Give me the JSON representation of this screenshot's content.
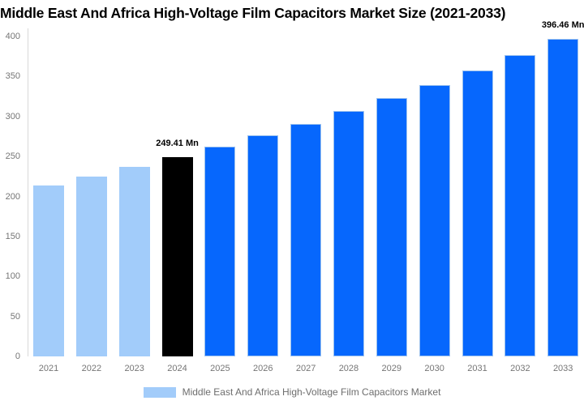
{
  "header": {
    "title": "Middle East And Africa High-Voltage Film Capacitors Market Size (2021-2033)"
  },
  "legend": {
    "label": "Middle East And Africa High-Voltage Film Capacitors Market"
  },
  "colors": {
    "historical_bar": "#A2CCFA",
    "base_year_bar": "#000000",
    "forecast_bar": "#0667FD",
    "forecast_bar_border": "#9EC3EE",
    "axis_line": "#D9D9D9",
    "tick_text": "#757575",
    "legend_text": "#6E6E6E",
    "data_label_text": "#000000"
  },
  "chart_data": {
    "type": "bar",
    "title": "Middle East And Africa High-Voltage Film Capacitors Market Size (2021-2033)",
    "series_name": "Middle East And Africa High-Voltage Film Capacitors Market",
    "unit": "Mn",
    "categories": [
      "2021",
      "2022",
      "2023",
      "2024",
      "2025",
      "2026",
      "2027",
      "2028",
      "2029",
      "2030",
      "2031",
      "2032",
      "2033"
    ],
    "values": [
      213.71,
      225.0,
      236.89,
      249.41,
      262.59,
      276.47,
      291.08,
      306.41,
      322.6,
      339.65,
      357.6,
      376.49,
      396.46
    ],
    "bar_roles": [
      "historical",
      "historical",
      "historical",
      "base_year",
      "forecast",
      "forecast",
      "forecast",
      "forecast",
      "forecast",
      "forecast",
      "forecast",
      "forecast",
      "forecast"
    ],
    "data_labels": [
      {
        "index": 3,
        "text": "249.41 Mn"
      },
      {
        "index": 12,
        "text": "396.46 Mn"
      }
    ],
    "ylim": [
      0,
      400
    ],
    "yticks": [
      400,
      350,
      300,
      250,
      200,
      150,
      100,
      50,
      0
    ],
    "xlabel": "",
    "ylabel": "",
    "grid": false,
    "legend_position": "bottom"
  }
}
